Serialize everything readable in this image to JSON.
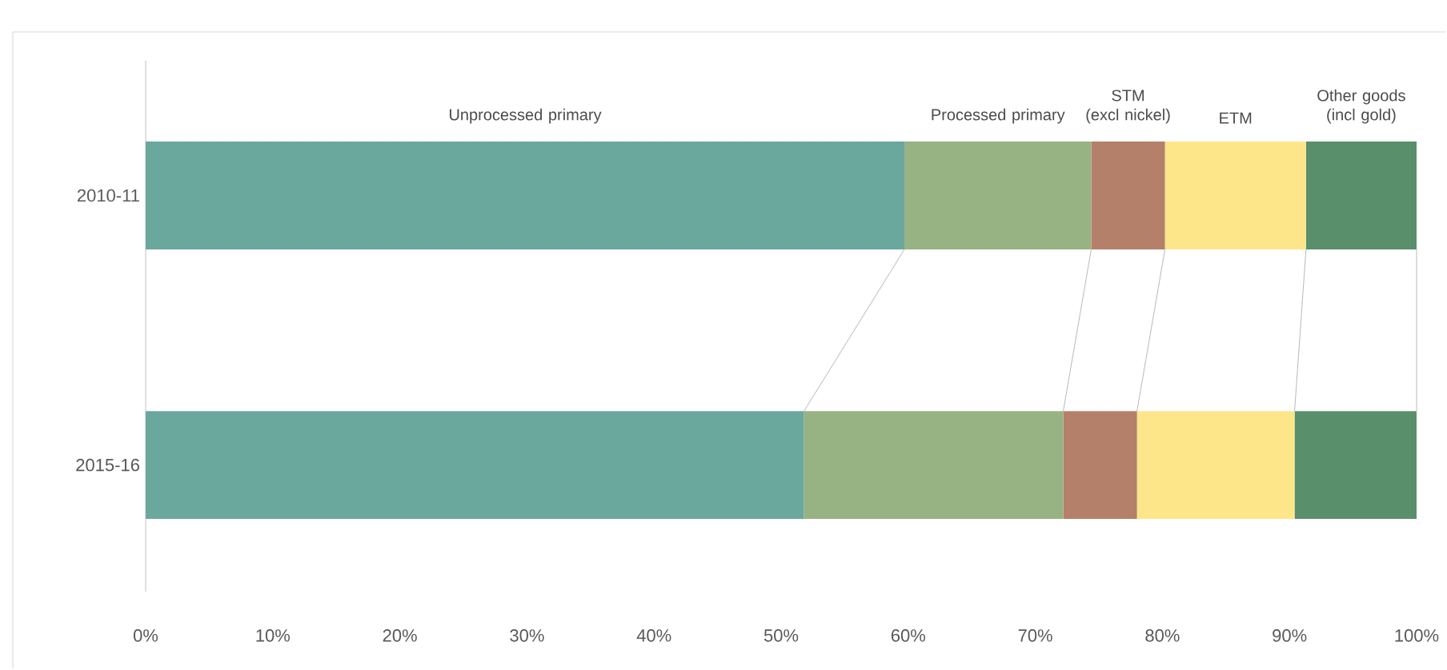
{
  "chart_data": {
    "type": "bar",
    "orientation": "horizontal",
    "stacked": true,
    "categories": [
      "2010-11",
      "2015-16"
    ],
    "series": [
      {
        "name": "Unprocessed primary",
        "color": "#6aa89e",
        "values": [
          59.7,
          51.8
        ]
      },
      {
        "name": "Processed primary",
        "color": "#97b283",
        "values": [
          14.7,
          20.4
        ]
      },
      {
        "name": "STM\n(excl nickel)",
        "color": "#b5806a",
        "values": [
          5.8,
          5.8
        ]
      },
      {
        "name": "ETM",
        "color": "#fde68a",
        "values": [
          11.1,
          12.4
        ]
      },
      {
        "name": "Other goods\n(incl gold)",
        "color": "#5a8f6c",
        "values": [
          8.7,
          9.6
        ]
      }
    ],
    "xlim": [
      0,
      100
    ],
    "xticks": [
      {
        "value": 0,
        "label": "0%"
      },
      {
        "value": 10,
        "label": "10%"
      },
      {
        "value": 20,
        "label": "20%"
      },
      {
        "value": 30,
        "label": "30%"
      },
      {
        "value": 40,
        "label": "40%"
      },
      {
        "value": 50,
        "label": "50%"
      },
      {
        "value": 60,
        "label": "60%"
      },
      {
        "value": 70,
        "label": "70%"
      },
      {
        "value": 80,
        "label": "80%"
      },
      {
        "value": 90,
        "label": "90%"
      },
      {
        "value": 100,
        "label": "100%"
      }
    ],
    "legend": false
  }
}
